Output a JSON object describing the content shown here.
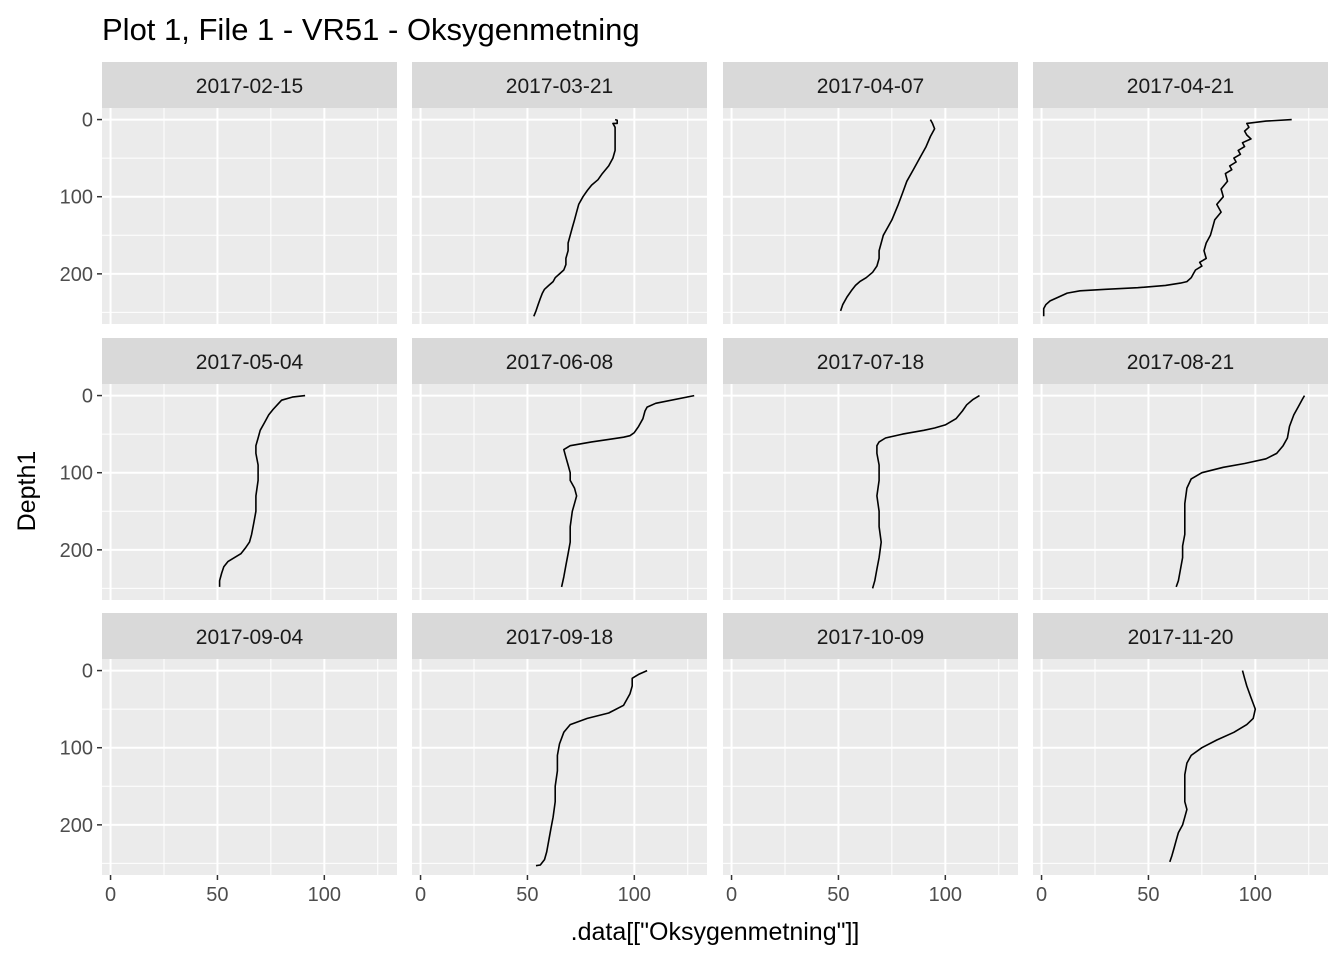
{
  "chart_data": {
    "type": "line",
    "title": "Plot 1, File 1 - VR51  -  Oksygenmetning",
    "xlabel": ".data[[\"Oksygenmetning\"]]",
    "ylabel": "Depth1",
    "xlim": [
      -4,
      134
    ],
    "ylim": [
      265,
      -15
    ],
    "y_reversed": true,
    "x_ticks": [
      0,
      50,
      100
    ],
    "y_ticks": [
      0,
      100,
      200
    ],
    "grid": true,
    "facet_layout": {
      "rows": 3,
      "cols": 4
    },
    "panels": [
      {
        "label": "2017-02-15",
        "series": []
      },
      {
        "label": "2017-03-21",
        "series": [
          {
            "x": [
              91,
              92,
              92,
              90,
              91,
              91,
              91,
              91,
              90,
              88,
              85,
              83,
              80,
              78,
              76,
              74,
              73,
              72,
              71,
              70,
              69,
              69,
              68,
              68,
              67,
              65,
              63,
              62,
              60,
              58,
              57,
              56,
              55,
              54,
              53
            ],
            "y": [
              0,
              1,
              5,
              5,
              10,
              20,
              30,
              40,
              50,
              60,
              70,
              78,
              85,
              92,
              100,
              110,
              120,
              130,
              140,
              150,
              160,
              170,
              180,
              188,
              195,
              200,
              205,
              210,
              215,
              220,
              225,
              232,
              240,
              248,
              255
            ]
          }
        ]
      },
      {
        "label": "2017-04-07",
        "series": [
          {
            "x": [
              93,
              94,
              95,
              93,
              91,
              88,
              85,
              82,
              80,
              78,
              75,
              73,
              71,
              70,
              69,
              69,
              68,
              66,
              63,
              60,
              58,
              56,
              54,
              52,
              51
            ],
            "y": [
              0,
              5,
              12,
              22,
              35,
              50,
              65,
              80,
              95,
              110,
              130,
              140,
              150,
              160,
              170,
              180,
              190,
              198,
              205,
              210,
              215,
              222,
              230,
              240,
              248
            ]
          }
        ]
      },
      {
        "label": "2017-04-21",
        "series": [
          {
            "x": [
              117,
              105,
              96,
              97,
              95,
              96,
              98,
              94,
              95,
              92,
              93,
              90,
              91,
              88,
              89,
              86,
              87,
              84,
              85,
              82,
              84,
              81,
              80,
              79,
              77,
              76,
              77,
              74,
              75,
              72,
              71,
              70,
              68,
              65,
              58,
              45,
              30,
              18,
              12,
              8,
              4,
              2,
              1,
              1
            ],
            "y": [
              0,
              2,
              5,
              10,
              15,
              20,
              25,
              30,
              35,
              40,
              45,
              50,
              55,
              60,
              65,
              70,
              80,
              90,
              100,
              110,
              120,
              130,
              140,
              150,
              160,
              170,
              180,
              185,
              190,
              195,
              200,
              205,
              210,
              212,
              215,
              218,
              220,
              222,
              225,
              230,
              235,
              240,
              245,
              255
            ]
          }
        ]
      },
      {
        "label": "2017-05-04",
        "series": [
          {
            "x": [
              91,
              85,
              80,
              78,
              76,
              74,
              72,
              70,
              69,
              68,
              68,
              69,
              69,
              68,
              68,
              67,
              66,
              65,
              63,
              61,
              58,
              55,
              53,
              52,
              51,
              51
            ],
            "y": [
              0,
              2,
              6,
              12,
              18,
              25,
              35,
              45,
              55,
              65,
              75,
              90,
              110,
              130,
              150,
              165,
              180,
              190,
              198,
              205,
              210,
              215,
              222,
              230,
              240,
              248
            ]
          }
        ]
      },
      {
        "label": "2017-06-08",
        "series": [
          {
            "x": [
              128,
              110,
              106,
              105,
              104,
              102,
              100,
              98,
              95,
              90,
              80,
              70,
              67,
              68,
              69,
              70,
              70,
              72,
              73,
              72,
              71,
              70,
              70,
              69,
              68,
              67,
              66
            ],
            "y": [
              0,
              10,
              15,
              20,
              30,
              40,
              48,
              52,
              54,
              56,
              60,
              65,
              70,
              80,
              90,
              100,
              110,
              120,
              130,
              140,
              150,
              170,
              190,
              205,
              220,
              235,
              248
            ]
          }
        ]
      },
      {
        "label": "2017-07-18",
        "series": [
          {
            "x": [
              116,
              113,
              110,
              108,
              105,
              100,
              95,
              90,
              80,
              72,
              69,
              68,
              68,
              69,
              69,
              68,
              69,
              69,
              70,
              69,
              68,
              67,
              66
            ],
            "y": [
              0,
              5,
              12,
              20,
              30,
              38,
              42,
              45,
              50,
              55,
              60,
              65,
              75,
              90,
              110,
              130,
              150,
              170,
              190,
              210,
              225,
              240,
              250
            ]
          }
        ]
      },
      {
        "label": "2017-08-21",
        "series": [
          {
            "x": [
              123,
              122,
              120,
              118,
              116,
              115,
              113,
              110,
              105,
              95,
              85,
              75,
              70,
              68,
              67,
              67,
              67,
              66,
              66,
              65,
              64,
              63
            ],
            "y": [
              0,
              5,
              15,
              25,
              40,
              55,
              65,
              75,
              82,
              88,
              93,
              100,
              108,
              120,
              140,
              160,
              180,
              195,
              210,
              225,
              240,
              248
            ]
          }
        ]
      },
      {
        "label": "2017-09-04",
        "series": []
      },
      {
        "label": "2017-09-18",
        "series": [
          {
            "x": [
              106,
              102,
              99,
              99,
              98,
              95,
              88,
              78,
              70,
              67,
              65,
              64,
              64,
              63,
              63,
              62,
              61,
              60,
              59,
              58,
              56,
              54
            ],
            "y": [
              0,
              5,
              10,
              20,
              30,
              45,
              55,
              62,
              70,
              80,
              95,
              110,
              130,
              150,
              170,
              190,
              205,
              220,
              235,
              245,
              252,
              253
            ]
          }
        ]
      },
      {
        "label": "2017-10-09",
        "series": []
      },
      {
        "label": "2017-11-20",
        "series": [
          {
            "x": [
              94,
              95,
              96,
              98,
              100,
              99,
              96,
              90,
              82,
              75,
              70,
              68,
              67,
              67,
              67,
              68,
              67,
              66,
              64,
              63,
              62,
              61,
              60
            ],
            "y": [
              0,
              10,
              20,
              35,
              50,
              62,
              70,
              80,
              90,
              100,
              110,
              120,
              135,
              150,
              170,
              180,
              190,
              200,
              210,
              220,
              230,
              240,
              248
            ]
          }
        ]
      }
    ]
  }
}
